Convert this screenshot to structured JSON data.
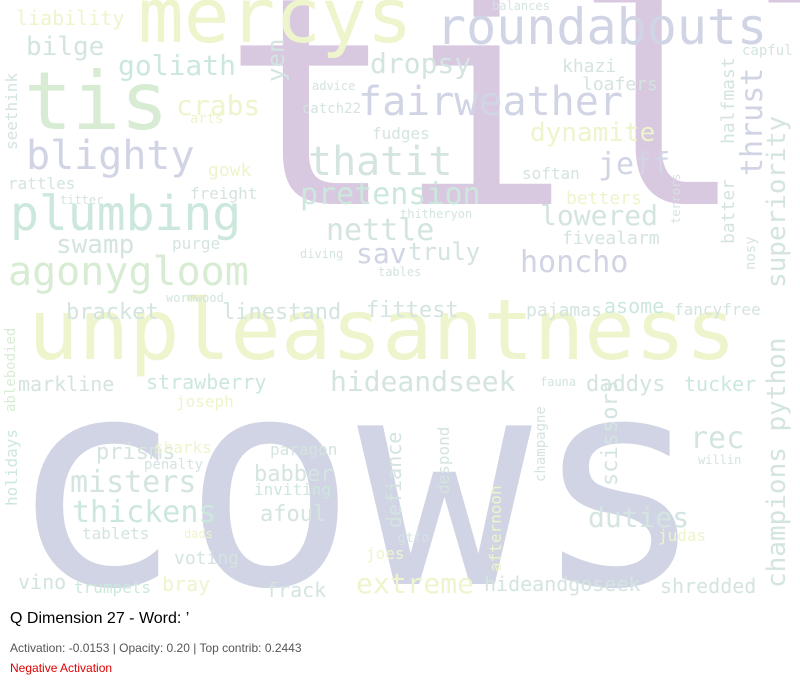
{
  "figure": {
    "title": "Q Dimension 27 - Word: ’",
    "stats": "Activation: -0.0153 | Opacity: 0.20 | Top contrib: 0.2443",
    "sign_label": "Negative Activation",
    "sign_color": "#e00000"
  },
  "palette": {
    "purple": "#d8c8e0",
    "slate": "#d0d4e4",
    "lime": "#eef4cc",
    "mint": "#cce8dc",
    "teal": "#d4e4e0",
    "green": "#d8ecd4"
  },
  "words": [
    {
      "text": "cows",
      "color": "slate"
    },
    {
      "text": "till",
      "color": "purple"
    },
    {
      "text": "unpleasantness",
      "color": "lime"
    },
    {
      "text": "mercys",
      "color": "lime"
    },
    {
      "text": "tis",
      "color": "green"
    },
    {
      "text": "roundabouts",
      "color": "slate"
    },
    {
      "text": "fairweather",
      "color": "slate"
    },
    {
      "text": "plumbing",
      "color": "mint"
    },
    {
      "text": "agonygloom",
      "color": "green"
    },
    {
      "text": "blighty",
      "color": "slate"
    },
    {
      "text": "thatit",
      "color": "teal"
    },
    {
      "text": "pretension",
      "color": "mint"
    },
    {
      "text": "champions python",
      "color": "teal"
    },
    {
      "text": "superiority",
      "color": "teal"
    },
    {
      "text": "thrust",
      "color": "slate"
    },
    {
      "text": "hideandseek",
      "color": "teal"
    },
    {
      "text": "misters",
      "color": "teal"
    },
    {
      "text": "thickens",
      "color": "mint"
    },
    {
      "text": "duties",
      "color": "teal"
    },
    {
      "text": "extreme",
      "color": "lime"
    },
    {
      "text": "honcho",
      "color": "slate"
    },
    {
      "text": "lowered",
      "color": "teal"
    },
    {
      "text": "nettle",
      "color": "teal"
    },
    {
      "text": "goliath",
      "color": "mint"
    },
    {
      "text": "dropsy",
      "color": "teal"
    },
    {
      "text": "dynamite",
      "color": "lime"
    },
    {
      "text": "crabs",
      "color": "lime"
    },
    {
      "text": "swamp",
      "color": "teal"
    },
    {
      "text": "jeff",
      "color": "slate"
    },
    {
      "text": "rec",
      "color": "teal"
    },
    {
      "text": "sav",
      "color": "slate"
    },
    {
      "text": "truly",
      "color": "teal"
    },
    {
      "text": "scissors",
      "color": "teal"
    },
    {
      "text": "bilge",
      "color": "teal"
    },
    {
      "text": "yen",
      "color": "teal"
    },
    {
      "text": "liability",
      "color": "lime"
    },
    {
      "text": "linestand",
      "color": "teal"
    },
    {
      "text": "fittest",
      "color": "teal"
    },
    {
      "text": "bracket",
      "color": "teal"
    },
    {
      "text": "markline",
      "color": "teal"
    },
    {
      "text": "strawberry",
      "color": "mint"
    },
    {
      "text": "prisms",
      "color": "teal"
    },
    {
      "text": "babber",
      "color": "teal"
    },
    {
      "text": "afoul",
      "color": "teal"
    },
    {
      "text": "defiance",
      "color": "teal"
    },
    {
      "text": "despond",
      "color": "teal"
    },
    {
      "text": "daddys",
      "color": "teal"
    },
    {
      "text": "tucker",
      "color": "mint"
    },
    {
      "text": "asome",
      "color": "mint"
    },
    {
      "text": "fancyfree",
      "color": "teal"
    },
    {
      "text": "pajamas",
      "color": "teal"
    },
    {
      "text": "hideandgoseek",
      "color": "teal"
    },
    {
      "text": "shredded",
      "color": "teal"
    },
    {
      "text": "frack",
      "color": "teal"
    },
    {
      "text": "bray",
      "color": "lime"
    },
    {
      "text": "vino",
      "color": "teal"
    },
    {
      "text": "trumpets",
      "color": "mint"
    },
    {
      "text": "voting",
      "color": "teal"
    },
    {
      "text": "joes",
      "color": "lime"
    },
    {
      "text": "judas",
      "color": "lime"
    },
    {
      "text": "gtfo",
      "color": "teal"
    },
    {
      "text": "afternoon",
      "color": "lime"
    },
    {
      "text": "champagne",
      "color": "teal"
    },
    {
      "text": "fauna",
      "color": "teal"
    },
    {
      "text": "willin",
      "color": "teal"
    },
    {
      "text": "paragon",
      "color": "teal"
    },
    {
      "text": "inviting",
      "color": "mint"
    },
    {
      "text": "penalty",
      "color": "teal"
    },
    {
      "text": "sharks",
      "color": "lime"
    },
    {
      "text": "joseph",
      "color": "lime"
    },
    {
      "text": "tablets",
      "color": "teal"
    },
    {
      "text": "dads",
      "color": "lime"
    },
    {
      "text": "holidays",
      "color": "mint"
    },
    {
      "text": "ablebodied",
      "color": "green"
    },
    {
      "text": "rattles",
      "color": "teal"
    },
    {
      "text": "seethink",
      "color": "teal"
    },
    {
      "text": "gowk",
      "color": "lime"
    },
    {
      "text": "freight",
      "color": "teal"
    },
    {
      "text": "titter",
      "color": "teal"
    },
    {
      "text": "purge",
      "color": "teal"
    },
    {
      "text": "wormwood",
      "color": "teal"
    },
    {
      "text": "diving",
      "color": "teal"
    },
    {
      "text": "tables",
      "color": "teal"
    },
    {
      "text": "thitheryon",
      "color": "teal"
    },
    {
      "text": "softan",
      "color": "teal"
    },
    {
      "text": "betters",
      "color": "lime"
    },
    {
      "text": "fivealarm",
      "color": "teal"
    },
    {
      "text": "terrors",
      "color": "teal"
    },
    {
      "text": "batter",
      "color": "teal"
    },
    {
      "text": "halfmast",
      "color": "teal"
    },
    {
      "text": "nosy",
      "color": "teal"
    },
    {
      "text": "fudges",
      "color": "teal"
    },
    {
      "text": "khazi",
      "color": "teal"
    },
    {
      "text": "loafers",
      "color": "teal"
    },
    {
      "text": "capful",
      "color": "teal"
    },
    {
      "text": "advice",
      "color": "teal"
    },
    {
      "text": "catch22",
      "color": "teal"
    },
    {
      "text": "arts",
      "color": "lime"
    },
    {
      "text": "balances",
      "color": "teal"
    }
  ]
}
